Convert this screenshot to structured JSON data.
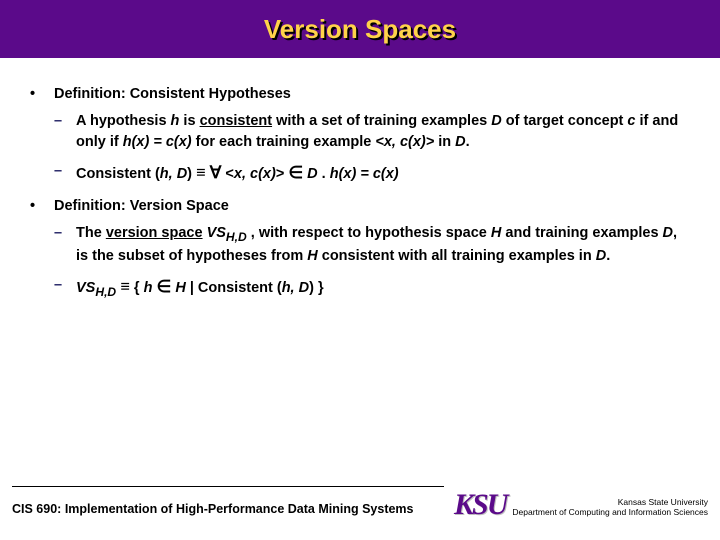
{
  "colors": {
    "title_bg": "#5b0a8a",
    "title_text": "#ffd24a",
    "body_text": "#000000",
    "dash_color": "#2a2a6a",
    "logo_color": "#5b0a8a"
  },
  "title": "Version Spaces",
  "bullets": [
    {
      "heading": "Definition: Consistent Hypotheses",
      "subs": [
        {
          "html": "A hypothesis <em>h</em> is <span class='underline'>consistent</span> with a set of training examples <em>D</em> of target concept <em>c</em> if and only if <em>h(x) = c(x)</em> for each training example <em>&lt;x, c(x)&gt;</em> in <em>D</em>."
        },
        {
          "html": "Consistent (<em>h, D</em>) <span class='sym'>≡</span> <span class='sym'>∀</span> &lt;<em>x, c(x)</em>&gt; <span class='sym'>∈</span> <em>D</em> . <em>h(x) = c(x)</em>"
        }
      ]
    },
    {
      "heading": "Definition: Version Space",
      "subs": [
        {
          "html": "The <span class='underline'>version space</span> <em>VS<sub>H,D</sub></em> , with respect to hypothesis space <em>H</em> and training examples <em>D</em>, is the subset of hypotheses from <em>H</em> consistent with all training examples in <em>D</em>."
        },
        {
          "html": "<em>VS<sub>H,D</sub></em> <span class='sym'>≡</span> { <em>h</em> <span class='sym'>∈</span> <em>H</em> | Consistent (<em>h, D</em>) }"
        }
      ]
    }
  ],
  "footer": {
    "course": "CIS 690:",
    "course_title": "Implementation of High-Performance Data Mining Systems",
    "logo": "KSU",
    "univ_line1": "Kansas State University",
    "univ_line2": "Department of Computing and Information Sciences"
  }
}
